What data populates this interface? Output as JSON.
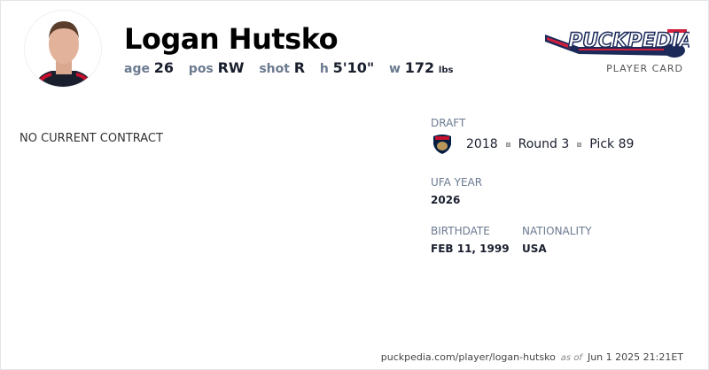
{
  "player": {
    "name": "Logan Hutsko",
    "age_label": "age",
    "age": "26",
    "pos_label": "pos",
    "pos": "RW",
    "shot_label": "shot",
    "shot": "R",
    "height_label": "h",
    "height": "5'10\"",
    "weight_label": "w",
    "weight": "172",
    "weight_unit": "lbs"
  },
  "brand": {
    "logo_text": "PuckPedia",
    "subtitle": "PLAYER CARD"
  },
  "contract": {
    "status": "NO CURRENT CONTRACT"
  },
  "draft": {
    "label": "DRAFT",
    "team_icon": "florida-panthers-logo",
    "year": "2018",
    "round": "Round 3",
    "pick": "Pick 89"
  },
  "ufa": {
    "label": "UFA YEAR",
    "value": "2026"
  },
  "birthdate": {
    "label": "BIRTHDATE",
    "value": "FEB 11, 1999"
  },
  "nationality": {
    "label": "NATIONALITY",
    "value": "USA"
  },
  "footer": {
    "url": "puckpedia.com/player/logan-hutsko",
    "as_of": "as of",
    "timestamp": "Jun 1 2025 21:21ET"
  },
  "colors": {
    "brand_navy": "#1c2a5a",
    "brand_red": "#d21f3c",
    "label": "#6b7a90"
  }
}
